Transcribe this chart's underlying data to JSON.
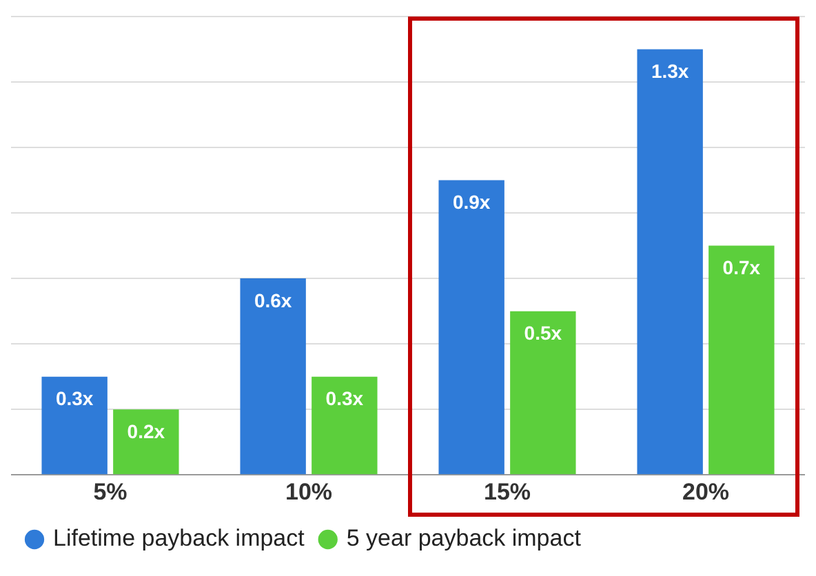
{
  "chart_data": {
    "type": "bar",
    "categories": [
      "5%",
      "10%",
      "15%",
      "20%"
    ],
    "series": [
      {
        "name": "Lifetime payback impact",
        "color": "#2f7bd8",
        "values": [
          0.3,
          0.6,
          0.9,
          1.3
        ],
        "value_labels": [
          "0.3x",
          "0.6x",
          "0.9x",
          "1.3x"
        ]
      },
      {
        "name": "5 year payback impact",
        "color": "#5ccf3c",
        "values": [
          0.2,
          0.3,
          0.5,
          0.7
        ],
        "value_labels": [
          "0.2x",
          "0.3x",
          "0.5x",
          "0.7x"
        ]
      }
    ],
    "tick_labels": "x",
    "grid": "y",
    "legend": "bottom left"
  }
}
